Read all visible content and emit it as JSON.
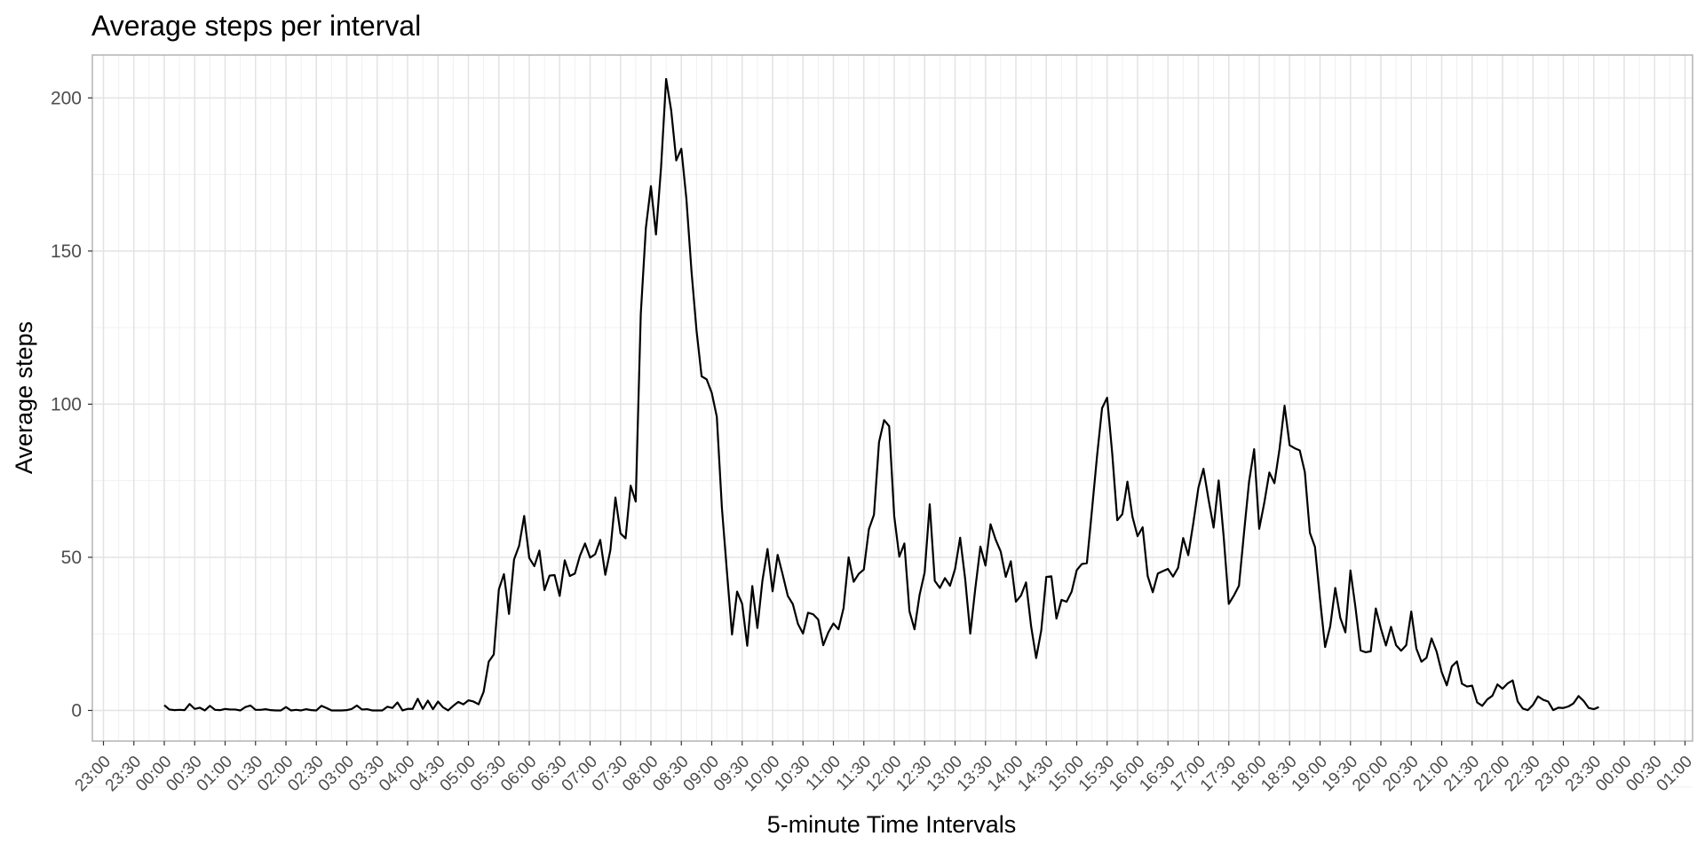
{
  "chart_data": {
    "type": "line",
    "title": "Average steps per interval",
    "xlabel": "5-minute Time Intervals",
    "ylabel": "Average steps",
    "x_unit": "time of day (HH:MM)",
    "x_range": [
      "23:00 (previous day)",
      "01:00 (next day)"
    ],
    "ylim": [
      -10,
      214
    ],
    "yticks": [
      0,
      50,
      100,
      150,
      200
    ],
    "xtick_labels": [
      "23:00",
      "23:30",
      "00:00",
      "00:30",
      "01:00",
      "01:30",
      "02:00",
      "02:30",
      "03:00",
      "03:30",
      "04:00",
      "04:30",
      "05:00",
      "05:30",
      "06:00",
      "06:30",
      "07:00",
      "07:30",
      "08:00",
      "08:30",
      "09:00",
      "09:30",
      "10:00",
      "10:30",
      "11:00",
      "11:30",
      "12:00",
      "12:30",
      "13:00",
      "13:30",
      "14:00",
      "14:30",
      "15:00",
      "15:30",
      "16:00",
      "16:30",
      "17:00",
      "17:30",
      "18:00",
      "18:30",
      "19:00",
      "19:30",
      "20:00",
      "20:30",
      "21:00",
      "21:30",
      "22:00",
      "22:30",
      "23:00",
      "23:30",
      "00:00",
      "00:30",
      "01:00"
    ],
    "grid": true,
    "line_color": "#000000",
    "series": [
      {
        "x_start": "00:00",
        "x_step_minutes": 5,
        "values": [
          1.7,
          0.3,
          0.1,
          0.2,
          0.1,
          2.1,
          0.5,
          0.9,
          0.0,
          1.5,
          0.2,
          0.1,
          0.5,
          0.3,
          0.3,
          0.0,
          1.1,
          1.6,
          0.2,
          0.2,
          0.4,
          0.1,
          0.0,
          0.0,
          1.1,
          0.0,
          0.2,
          0.0,
          0.4,
          0.1,
          0.0,
          1.5,
          0.8,
          0.0,
          0.0,
          0.0,
          0.1,
          0.5,
          1.6,
          0.3,
          0.4,
          0.0,
          0.0,
          0.0,
          1.2,
          0.8,
          2.6,
          0.0,
          0.5,
          0.5,
          3.8,
          0.5,
          3.2,
          0.4,
          2.9,
          1.0,
          0.0,
          1.5,
          2.8,
          2.0,
          3.3,
          2.9,
          2.0,
          6.1,
          15.9,
          18.3,
          39.5,
          44.5,
          31.5,
          49.3,
          53.8,
          63.5,
          49.8,
          47.1,
          52.2,
          39.3,
          44.0,
          44.2,
          37.4,
          49.0,
          43.9,
          44.7,
          50.5,
          54.5,
          49.9,
          51.0,
          55.7,
          44.3,
          52.3,
          69.5,
          57.8,
          56.2,
          73.4,
          68.2,
          129.4,
          157.5,
          171.2,
          155.4,
          177.3,
          206.2,
          195.9,
          179.6,
          183.4,
          167.0,
          143.5,
          124.0,
          109.1,
          108.1,
          103.7,
          95.9,
          66.2,
          45.2,
          24.8,
          38.8,
          34.8,
          21.1,
          40.6,
          26.9,
          42.4,
          52.7,
          38.9,
          50.8,
          44.3,
          37.4,
          34.7,
          28.3,
          25.1,
          31.9,
          31.4,
          29.7,
          21.3,
          25.5,
          28.4,
          26.5,
          33.4,
          50.0,
          42.0,
          44.6,
          46.0,
          59.2,
          63.9,
          87.6,
          94.8,
          92.8,
          63.4,
          50.2,
          54.5,
          32.4,
          26.5,
          37.7,
          45.1,
          67.3,
          42.3,
          40.0,
          43.2,
          40.7,
          46.2,
          56.4,
          42.8,
          25.1,
          39.9,
          53.5,
          47.3,
          60.8,
          55.8,
          51.9,
          43.6,
          48.7,
          35.5,
          37.5,
          41.8,
          27.5,
          17.1,
          26.1,
          43.6,
          43.8,
          30.0,
          36.1,
          35.5,
          38.8,
          45.8,
          47.8,
          48.1,
          65.3,
          82.9,
          98.7,
          102.1,
          83.96,
          62.1,
          64.1,
          74.7,
          63.2,
          56.9,
          59.8,
          43.9,
          38.6,
          44.7,
          45.5,
          46.2,
          43.7,
          46.6,
          56.3,
          50.7,
          61.2,
          72.7,
          78.9,
          68.9,
          59.7,
          75.1,
          56.5,
          34.8,
          37.5,
          40.7,
          58.0,
          74.7,
          85.3,
          59.3,
          67.8,
          77.7,
          74.2,
          85.3,
          99.5,
          86.6,
          85.6,
          84.9,
          77.8,
          58.0,
          53.4,
          36.3,
          20.7,
          27.4,
          40.0,
          30.2,
          25.5,
          45.7,
          33.5,
          19.6,
          19.0,
          19.3,
          33.3,
          26.8,
          21.2,
          27.3,
          21.3,
          19.5,
          21.3,
          32.3,
          20.2,
          15.9,
          17.2,
          23.5,
          19.2,
          12.5,
          8.2,
          14.4,
          16.0,
          8.7,
          7.8,
          8.1,
          2.6,
          1.5,
          3.6,
          4.8,
          8.5,
          7.1,
          8.8,
          9.8,
          2.9,
          0.6,
          0.1,
          1.8,
          4.6,
          3.5,
          2.9,
          0.1,
          0.9,
          0.8,
          1.3,
          2.3,
          4.7,
          3.1,
          0.8,
          0.4,
          1.1
        ]
      }
    ]
  }
}
